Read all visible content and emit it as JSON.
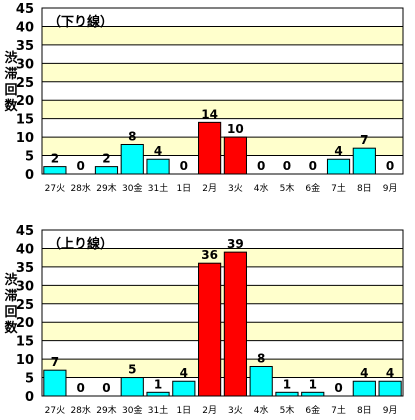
{
  "chart_data": [
    {
      "type": "bar",
      "title": "（下り線）",
      "ylabel": "渋滞回数",
      "xlabel": "",
      "ylim": [
        0,
        45
      ],
      "yticks": [
        0,
        5,
        10,
        15,
        20,
        25,
        30,
        35,
        40,
        45
      ],
      "grid": true,
      "categories": [
        "27火",
        "28水",
        "29木",
        "30金",
        "31土",
        "1日",
        "2月",
        "3火",
        "4水",
        "5木",
        "6金",
        "7土",
        "8日",
        "9月"
      ],
      "values": [
        2,
        0,
        2,
        8,
        4,
        0,
        14,
        10,
        0,
        0,
        0,
        4,
        7,
        0
      ],
      "highlight_color": "#ff0000",
      "bar_color": "#00ffff",
      "highlight_categories": [
        "2月",
        "3火"
      ],
      "band_colors": [
        "#ffffff",
        "#ffffcc"
      ]
    },
    {
      "type": "bar",
      "title": "（上り線）",
      "ylabel": "渋滞回数",
      "xlabel": "",
      "ylim": [
        0,
        45
      ],
      "yticks": [
        0,
        5,
        10,
        15,
        20,
        25,
        30,
        35,
        40,
        45
      ],
      "grid": true,
      "categories": [
        "27火",
        "28水",
        "29木",
        "30金",
        "31土",
        "1日",
        "2月",
        "3火",
        "4水",
        "5木",
        "6金",
        "7土",
        "8日",
        "9月"
      ],
      "values": [
        7,
        0,
        0,
        5,
        1,
        4,
        36,
        39,
        8,
        1,
        1,
        0,
        4,
        4
      ],
      "highlight_color": "#ff0000",
      "bar_color": "#00ffff",
      "highlight_categories": [
        "2月",
        "3火"
      ],
      "band_colors": [
        "#ffffff",
        "#ffffcc"
      ]
    }
  ]
}
